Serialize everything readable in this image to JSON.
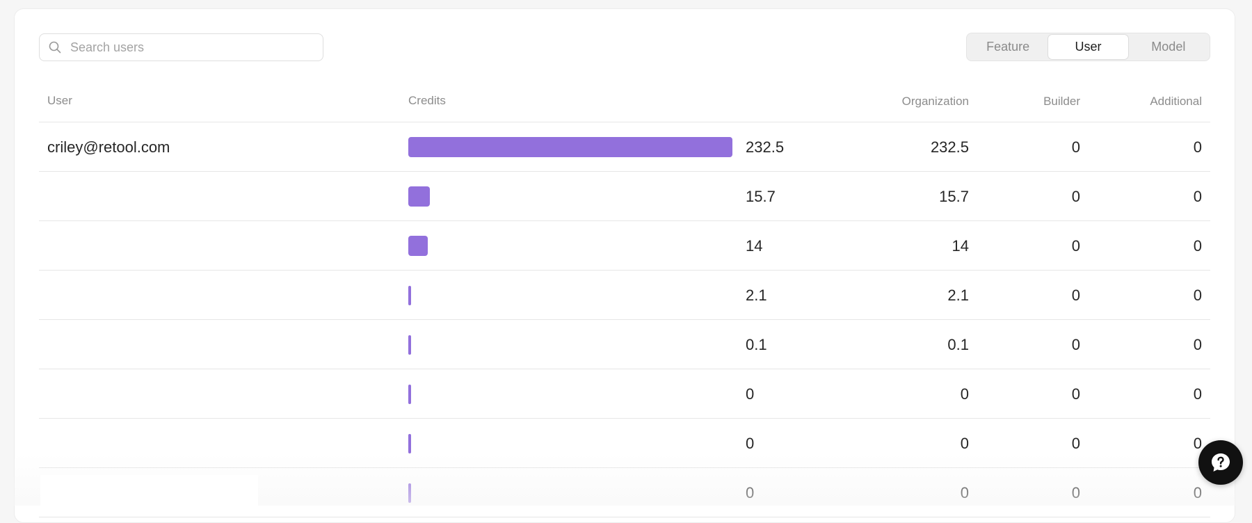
{
  "search": {
    "placeholder": "Search users"
  },
  "tabs": [
    {
      "label": "Feature",
      "active": false
    },
    {
      "label": "User",
      "active": true
    },
    {
      "label": "Model",
      "active": false
    }
  ],
  "columns": {
    "user": "User",
    "credits": "Credits",
    "organization": "Organization",
    "builder": "Builder",
    "additional": "Additional"
  },
  "rows": [
    {
      "user": "criley@retool.com",
      "credits": "232.5",
      "organization": "232.5",
      "builder": "0",
      "additional": "0"
    },
    {
      "user": "",
      "credits": "15.7",
      "organization": "15.7",
      "builder": "0",
      "additional": "0"
    },
    {
      "user": "",
      "credits": "14",
      "organization": "14",
      "builder": "0",
      "additional": "0"
    },
    {
      "user": "",
      "credits": "2.1",
      "organization": "2.1",
      "builder": "0",
      "additional": "0"
    },
    {
      "user": "",
      "credits": "0.1",
      "organization": "0.1",
      "builder": "0",
      "additional": "0"
    },
    {
      "user": "",
      "credits": "0",
      "organization": "0",
      "builder": "0",
      "additional": "0"
    },
    {
      "user": "",
      "credits": "0",
      "organization": "0",
      "builder": "0",
      "additional": "0"
    },
    {
      "user": "",
      "credits": "0",
      "organization": "0",
      "builder": "0",
      "additional": "0"
    }
  ],
  "credit_bar": {
    "max": 232.5,
    "color": "#9270dc"
  },
  "colors": {
    "accent": "#9270dc",
    "help_button": "#111111"
  },
  "icons": {
    "search": "search-icon",
    "help": "help-question-icon"
  }
}
